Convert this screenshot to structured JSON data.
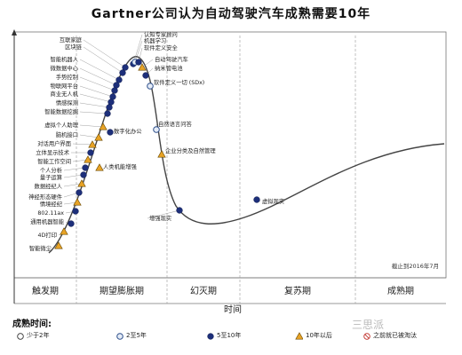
{
  "title": "Gartner公司认为自动驾驶汽车成熟需要10年",
  "chart_data": {
    "type": "scatter",
    "x_axis_label": "时间",
    "phases": [
      "触发期",
      "期望膨胀期",
      "幻灭期",
      "复苏期",
      "成熟期"
    ],
    "date_note": "截止到2016年7月",
    "legend_title": "成熟时间:",
    "legend": [
      {
        "key": "lt2",
        "label": "少于2年",
        "marker": "open-circle"
      },
      {
        "key": "2to5",
        "label": "2至5年",
        "marker": "light-circle"
      },
      {
        "key": "5to10",
        "label": "5至10年",
        "marker": "dark-circle"
      },
      {
        "key": "gt10",
        "label": "10年以后",
        "marker": "triangle"
      },
      {
        "key": "obsolete",
        "label": "之前就已被淘汰",
        "marker": "crossed-circle"
      }
    ],
    "points": [
      {
        "label": "认知专家顾问",
        "stage": "期望膨胀期",
        "maturity": "5to10"
      },
      {
        "label": "机器学习",
        "stage": "期望膨胀期",
        "maturity": "2to5"
      },
      {
        "label": "软件定义安全",
        "stage": "期望膨胀期",
        "maturity": "5to10"
      },
      {
        "label": "自动驾驶汽车",
        "stage": "期望膨胀期",
        "maturity": "gt10"
      },
      {
        "label": "纳米管电池",
        "stage": "期望膨胀期",
        "maturity": "5to10"
      },
      {
        "label": "软件定义一切 (SDx)",
        "stage": "幻灭期",
        "maturity": "2to5"
      },
      {
        "label": "自然语言问答",
        "stage": "幻灭期",
        "maturity": "2to5"
      },
      {
        "label": "企业分类及自然管理",
        "stage": "幻灭期",
        "maturity": "gt10"
      },
      {
        "label": "增强现实",
        "stage": "幻灭期",
        "maturity": "5to10"
      },
      {
        "label": "虚拟现实",
        "stage": "复苏期",
        "maturity": "5to10"
      },
      {
        "label": "数字化办公",
        "stage": "期望膨胀期",
        "maturity": "5to10"
      },
      {
        "label": "人类机能增强",
        "stage": "期望膨胀期",
        "maturity": "gt10"
      },
      {
        "label": "互联家庭",
        "stage": "期望膨胀期",
        "maturity": "5to10"
      },
      {
        "label": "区块链",
        "stage": "期望膨胀期",
        "maturity": "5to10"
      },
      {
        "label": "智能机器人",
        "stage": "期望膨胀期",
        "maturity": "5to10"
      },
      {
        "label": "微数据中心",
        "stage": "期望膨胀期",
        "maturity": "5to10"
      },
      {
        "label": "手势控制",
        "stage": "期望膨胀期",
        "maturity": "5to10"
      },
      {
        "label": "物联网平台",
        "stage": "期望膨胀期",
        "maturity": "5to10"
      },
      {
        "label": "商业无人机",
        "stage": "期望膨胀期",
        "maturity": "5to10"
      },
      {
        "label": "情感探测",
        "stage": "期望膨胀期",
        "maturity": "5to10"
      },
      {
        "label": "智能数据挖掘",
        "stage": "期望膨胀期",
        "maturity": "5to10"
      },
      {
        "label": "虚拟个人助理",
        "stage": "期望膨胀期",
        "maturity": "gt10"
      },
      {
        "label": "脑机接口",
        "stage": "期望膨胀期",
        "maturity": "gt10"
      },
      {
        "label": "对话用户界面",
        "stage": "触发期",
        "maturity": "gt10"
      },
      {
        "label": "立体显示技术",
        "stage": "触发期",
        "maturity": "5to10"
      },
      {
        "label": "智能工作空间",
        "stage": "触发期",
        "maturity": "gt10"
      },
      {
        "label": "个人分析",
        "stage": "触发期",
        "maturity": "5to10"
      },
      {
        "label": "量子运算",
        "stage": "触发期",
        "maturity": "5to10"
      },
      {
        "label": "数据经纪人",
        "stage": "触发期",
        "maturity": "gt10"
      },
      {
        "label": "神经形态硬件",
        "stage": "触发期",
        "maturity": "5to10"
      },
      {
        "label": "情境经纪",
        "stage": "触发期",
        "maturity": "gt10"
      },
      {
        "label": "802.11ax",
        "stage": "触发期",
        "maturity": "5to10"
      },
      {
        "label": "通用机器智能",
        "stage": "触发期",
        "maturity": "5to10"
      },
      {
        "label": "4D打印",
        "stage": "触发期",
        "maturity": "gt10"
      },
      {
        "label": "智能微尘",
        "stage": "触发期",
        "maturity": "gt10"
      }
    ]
  },
  "watermark": "三思派"
}
